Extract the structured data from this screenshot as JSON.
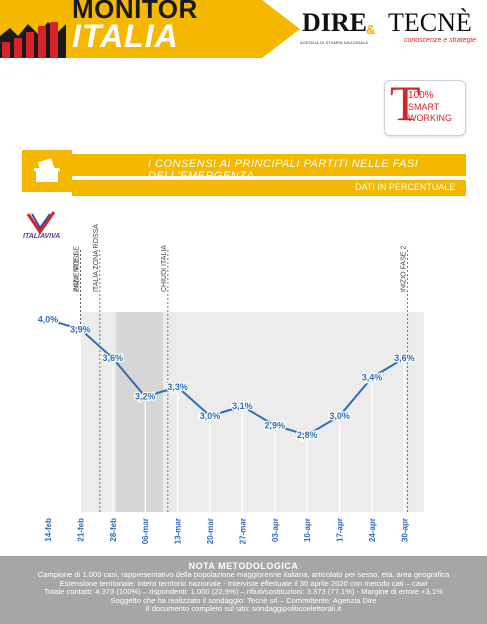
{
  "header": {
    "brand_line1": "MONITOR",
    "brand_line2": "ITALIA",
    "dire_logo": "DIRE",
    "dire_subtitle": "AGENZIA DI STAMPA NAZIONALE",
    "ampersand": "&",
    "tecne_logo": "TECNÈ",
    "tecne_subtitle": "conoscenze e strategie"
  },
  "badge": {
    "line1": "100%",
    "line2": "SMART",
    "line3": "WORKING"
  },
  "party": {
    "name": "ITALIAVIVA"
  },
  "colors": {
    "accent_yellow": "#f5b800",
    "line_blue": "#2e6db4",
    "logo_red": "#d8232a",
    "footer_grey": "#a6a6a6"
  },
  "chart_data": {
    "type": "line",
    "title": "I CONSENSI AI PRINCIPALI PARTITI NELLE FASI DELL'EMERGENZA",
    "subtitle": "DATI IN PERCENTUALE",
    "categories": [
      "14-feb",
      "21-feb",
      "28-feb",
      "06-mar",
      "13-mar",
      "20-mar",
      "27-mar",
      "03-apr",
      "10-apr",
      "17-apr",
      "24-apr",
      "30-apr"
    ],
    "series": [
      {
        "values": [
          4.0,
          3.9,
          3.6,
          3.2,
          3.3,
          3.0,
          3.1,
          2.9,
          2.8,
          3.0,
          3.4,
          3.6
        ],
        "labels": [
          "4,0%",
          "3,9%",
          "3,6%",
          "3,2%",
          "3,3%",
          "3,0%",
          "3,1%",
          "2,9%",
          "2,8%",
          "3,0%",
          "3,4%",
          "3,6%"
        ]
      }
    ],
    "ylim": [
      2.0,
      4.6
    ],
    "events": [
      {
        "label": "PAZIENTE 1",
        "after": "14-feb",
        "pos": 1.0
      },
      {
        "label": "ZONE ROSSE",
        "after": "21-feb",
        "pos": 1.0
      },
      {
        "label": "ITALIA ZONA ROSSA",
        "after": "28-feb",
        "pos": 1.6
      },
      {
        "label": "CHIUDI ITALIA",
        "after": "06-mar",
        "pos": 3.7
      },
      {
        "label": "INIZIO FASE 2",
        "after": "30-apr",
        "pos": 11.1
      }
    ],
    "shaded_regions": [
      {
        "from": 1.0,
        "to": 11.6,
        "tone": "light"
      },
      {
        "from": 2.1,
        "to": 3.55,
        "tone": "dark"
      }
    ]
  },
  "footer": {
    "title": "NOTA METODOLOGICA",
    "line1": "Campione di 1.000 casi, rappresentativo della popolazione maggiorenne italiana, articolato per sesso, età, area geografica",
    "line2": "Estensione territoriale: intero territorio nazionale - Interviste effettuate il 30 aprile 2020 con metodo cati – cawi",
    "line3": "Totale contatti: 4.373 (100%) – rispondenti: 1.000 (22,9%) – rifiuti/sostituzioni: 3.373 (77,1%) - Margine di errore +3,1%",
    "line4": "Soggetto che ha realizzato il sondaggio: Tecnè srl – Committente: Agenzia Dire",
    "line5": "Il documento completo sul sito: sondaggipoliticoelettorali.it"
  }
}
